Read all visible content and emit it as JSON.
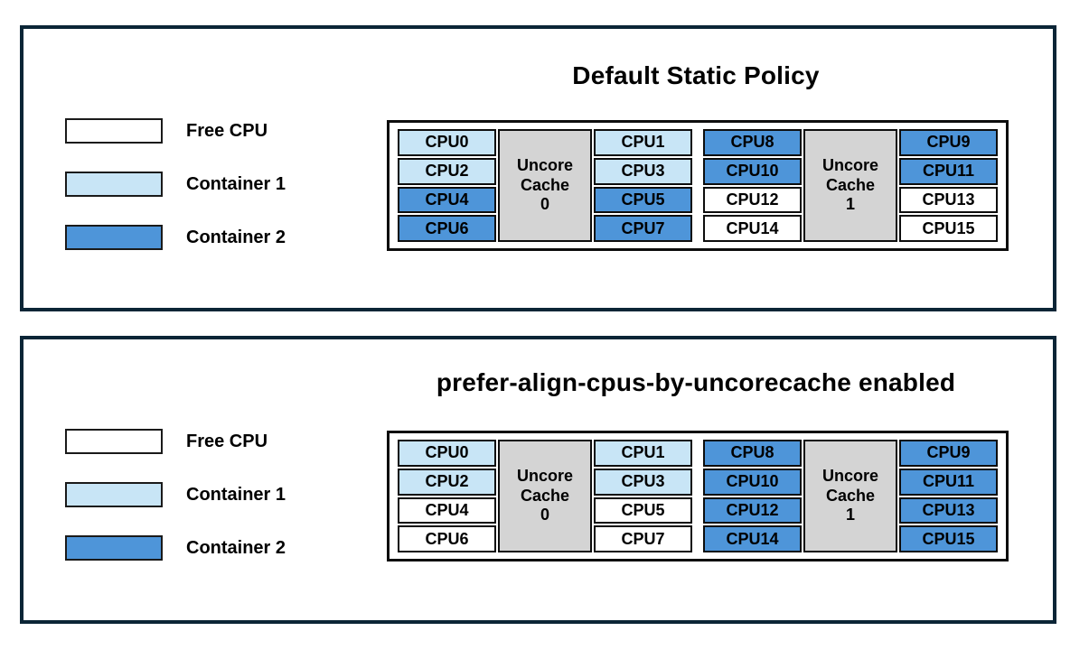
{
  "colors": {
    "free": "#ffffff",
    "container1": "#c8e5f6",
    "container2": "#4e95d9",
    "uncore": "#d4d4d4",
    "panel_border": "#0b2536"
  },
  "legend": [
    {
      "label": "Free CPU",
      "state": "free"
    },
    {
      "label": "Container 1",
      "state": "container1"
    },
    {
      "label": "Container 2",
      "state": "container2"
    }
  ],
  "panels": [
    {
      "title": "Default Static Policy",
      "groups": [
        {
          "uncore": {
            "lines": [
              "Uncore",
              "Cache",
              "0"
            ]
          },
          "left": [
            {
              "label": "CPU0",
              "state": "container1"
            },
            {
              "label": "CPU2",
              "state": "container1"
            },
            {
              "label": "CPU4",
              "state": "container2"
            },
            {
              "label": "CPU6",
              "state": "container2"
            }
          ],
          "right": [
            {
              "label": "CPU1",
              "state": "container1"
            },
            {
              "label": "CPU3",
              "state": "container1"
            },
            {
              "label": "CPU5",
              "state": "container2"
            },
            {
              "label": "CPU7",
              "state": "container2"
            }
          ]
        },
        {
          "uncore": {
            "lines": [
              "Uncore",
              "Cache",
              "1"
            ]
          },
          "left": [
            {
              "label": "CPU8",
              "state": "container2"
            },
            {
              "label": "CPU10",
              "state": "container2"
            },
            {
              "label": "CPU12",
              "state": "free"
            },
            {
              "label": "CPU14",
              "state": "free"
            }
          ],
          "right": [
            {
              "label": "CPU9",
              "state": "container2"
            },
            {
              "label": "CPU11",
              "state": "container2"
            },
            {
              "label": "CPU13",
              "state": "free"
            },
            {
              "label": "CPU15",
              "state": "free"
            }
          ]
        }
      ]
    },
    {
      "title": "prefer-align-cpus-by-uncorecache enabled",
      "groups": [
        {
          "uncore": {
            "lines": [
              "Uncore",
              "Cache",
              "0"
            ]
          },
          "left": [
            {
              "label": "CPU0",
              "state": "container1"
            },
            {
              "label": "CPU2",
              "state": "container1"
            },
            {
              "label": "CPU4",
              "state": "free"
            },
            {
              "label": "CPU6",
              "state": "free"
            }
          ],
          "right": [
            {
              "label": "CPU1",
              "state": "container1"
            },
            {
              "label": "CPU3",
              "state": "container1"
            },
            {
              "label": "CPU5",
              "state": "free"
            },
            {
              "label": "CPU7",
              "state": "free"
            }
          ]
        },
        {
          "uncore": {
            "lines": [
              "Uncore",
              "Cache",
              "1"
            ]
          },
          "left": [
            {
              "label": "CPU8",
              "state": "container2"
            },
            {
              "label": "CPU10",
              "state": "container2"
            },
            {
              "label": "CPU12",
              "state": "container2"
            },
            {
              "label": "CPU14",
              "state": "container2"
            }
          ],
          "right": [
            {
              "label": "CPU9",
              "state": "container2"
            },
            {
              "label": "CPU11",
              "state": "container2"
            },
            {
              "label": "CPU13",
              "state": "container2"
            },
            {
              "label": "CPU15",
              "state": "container2"
            }
          ]
        }
      ]
    }
  ]
}
